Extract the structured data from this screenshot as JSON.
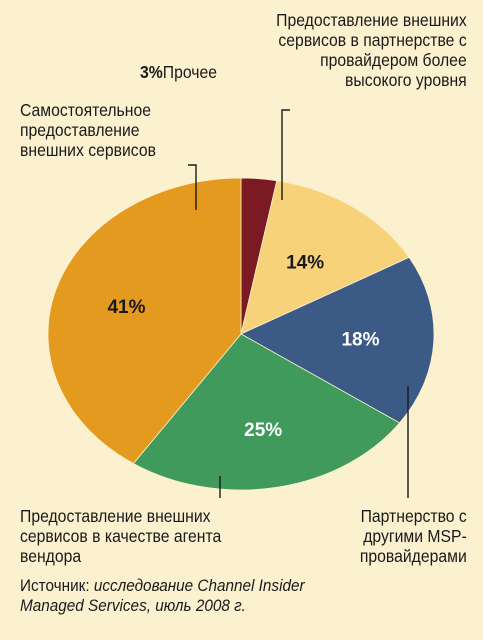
{
  "chart_data": {
    "type": "pie",
    "slices": [
      {
        "label": "Прочее",
        "value": 3,
        "pct_label": "3%",
        "color": "#7b1a22"
      },
      {
        "label": "Предоставление внешних сервисов в партнерстве с провайдером более высокого уровня",
        "value": 14,
        "pct_label": "14%",
        "color": "#f7d27a"
      },
      {
        "label": "Партнерство с другими MSP-провайдерами",
        "value": 18,
        "pct_label": "18%",
        "color": "#3b5a85"
      },
      {
        "label": "Предоставление внешних сервисов в качестве агента вендора",
        "value": 25,
        "pct_label": "25%",
        "color": "#3f9a5c"
      },
      {
        "label": "Самостоятельное предоставление внешних сервисов",
        "value": 41,
        "pct_label": "41%",
        "color": "#e39a1e"
      }
    ]
  },
  "labels": {
    "other_pct": "3%",
    "other_name": "Прочее",
    "upper_partner_lines": [
      "Предоставление внешних",
      "сервисов в партнерстве с",
      "провайдером более",
      "высокого уровня"
    ],
    "self_lines": [
      "Самостоятельное",
      "предоставление",
      "внешних сервисов"
    ],
    "vendor_agent_lines": [
      "Предоставление внешних",
      "сервисов в качестве агента",
      "вендора"
    ],
    "msp_lines": [
      "Партнерство с",
      "другими MSP-",
      "провайдерами"
    ]
  },
  "source": {
    "prefix": "Источник: ",
    "line1_italic": "исследование Channel Insider",
    "line2_italic": "Managed Services, июль 2008 г."
  }
}
